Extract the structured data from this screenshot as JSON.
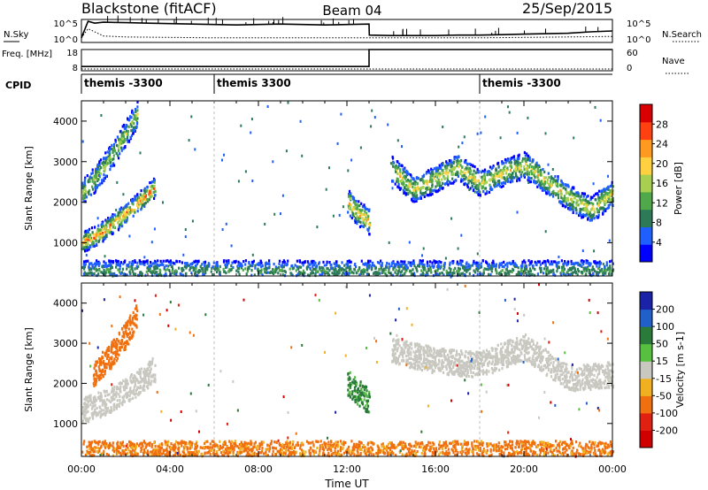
{
  "header": {
    "station": "Blackstone (fitACF)",
    "beam": "Beam 04",
    "date": "25/Sep/2015"
  },
  "chart_data": [
    {
      "type": "line",
      "panel": "noise",
      "left_label": "N.Sky",
      "right_label": "N.Search",
      "left_ticks": [
        "10^5",
        "10^0"
      ],
      "right_ticks": [
        "10^5",
        "10^0"
      ],
      "x_range": [
        0,
        24
      ],
      "series": [
        {
          "name": "N.Sky",
          "style": "solid",
          "x": [
            0,
            0.3,
            0.6,
            1,
            2,
            3,
            4,
            5,
            6,
            7,
            8,
            9,
            10,
            11,
            12,
            13,
            13.01,
            14,
            15,
            16,
            17,
            18,
            19,
            20,
            21,
            22,
            23,
            24
          ],
          "y": [
            1.0,
            4.6,
            4.2,
            4.4,
            4.3,
            4.2,
            4.1,
            4.0,
            3.9,
            3.8,
            3.9,
            4.0,
            3.9,
            3.8,
            3.9,
            4.0,
            1.6,
            1.5,
            1.5,
            1.5,
            1.6,
            1.6,
            1.7,
            1.8,
            1.9,
            2.0,
            2.3,
            2.5
          ]
        },
        {
          "name": "N.Search",
          "style": "dotted",
          "x": [
            0,
            0.3,
            1,
            2,
            4,
            6,
            8,
            10,
            12,
            14,
            16,
            18,
            20,
            22,
            24
          ],
          "y": [
            1.0,
            3.0,
            1.4,
            1.2,
            1.1,
            1.0,
            1.0,
            1.0,
            1.0,
            1.0,
            1.0,
            1.0,
            1.1,
            1.2,
            1.3
          ]
        }
      ]
    },
    {
      "type": "line",
      "panel": "frequency",
      "left_label": "Freq. [MHz]",
      "right_label": "Nave",
      "left_ticks": [
        "18",
        "8"
      ],
      "right_ticks": [
        "60",
        "0"
      ],
      "x_range": [
        0,
        24
      ],
      "series": [
        {
          "name": "Freq. [MHz]",
          "style": "solid",
          "x": [
            0,
            13,
            13,
            24
          ],
          "y": [
            10,
            10,
            18,
            18
          ]
        },
        {
          "name": "Nave",
          "style": "dotted",
          "x": [
            0,
            24
          ],
          "y": [
            5,
            5
          ]
        }
      ]
    },
    {
      "type": "table",
      "panel": "cpid",
      "label": "CPID",
      "segments": [
        {
          "start": 0,
          "end": 6,
          "text": "themis -3300"
        },
        {
          "start": 6,
          "end": 18,
          "text": "themis 3300"
        },
        {
          "start": 18,
          "end": 24,
          "text": "themis -3300"
        }
      ]
    },
    {
      "type": "heatmap",
      "panel": "power",
      "ylabel": "Slant Range [km]",
      "xlim": [
        0,
        24
      ],
      "ylim": [
        180,
        4500
      ],
      "yticks": [
        1000,
        2000,
        3000,
        4000
      ],
      "colorbar": {
        "label": "Power [dB]",
        "ticks": [
          4,
          8,
          12,
          16,
          20,
          24,
          28
        ],
        "range": [
          0,
          32
        ],
        "colors": [
          "#0000ff",
          "#1f5fff",
          "#2c7a58",
          "#4fa84a",
          "#a8d050",
          "#ffd040",
          "#ff9a20",
          "#ff4010",
          "#d80000"
        ]
      },
      "features": [
        {
          "name": "near-range scatter 1",
          "x": [
            0.0,
            0.8,
            1.5,
            2.3,
            3.0,
            3.3
          ],
          "y": [
            1000,
            1200,
            1500,
            1850,
            2200,
            2350
          ],
          "peak_power": 28
        },
        {
          "name": "far-range scatter 1",
          "x": [
            0.0,
            0.5,
            1.0,
            1.5,
            2.0,
            2.5
          ],
          "y": [
            2200,
            2500,
            2850,
            3250,
            3700,
            4150
          ],
          "peak_power": 18
        },
        {
          "name": "pre-13UT echo",
          "x": [
            12.0,
            12.5,
            13.0
          ],
          "y": [
            2000,
            1700,
            1500
          ],
          "peak_power": 24
        },
        {
          "name": "afternoon band",
          "x": [
            14.0,
            15.0,
            16.0,
            17.0,
            18.0,
            19.0,
            20.0,
            21.0,
            22.0,
            23.0,
            24.0
          ],
          "y": [
            2800,
            2300,
            2550,
            2850,
            2450,
            2700,
            2900,
            2500,
            2100,
            1800,
            2200
          ],
          "peak_power": 22
        },
        {
          "name": "ground scatter near range",
          "x": [
            0.0,
            4.0,
            8.0,
            12.0,
            16.0,
            20.0,
            24.0
          ],
          "y": [
            300,
            300,
            300,
            300,
            300,
            300,
            300
          ],
          "peak_power": 12
        }
      ]
    },
    {
      "type": "heatmap",
      "panel": "velocity",
      "ylabel": "Slant Range [km]",
      "xlabel": "Time UT",
      "xlim": [
        0,
        24
      ],
      "ylim": [
        180,
        4500
      ],
      "yticks": [
        1000,
        2000,
        3000,
        4000
      ],
      "xticks": [
        "00:00",
        "04:00",
        "08:00",
        "12:00",
        "16:00",
        "20:00",
        "00:00"
      ],
      "colorbar": {
        "label": "Velocity [m s-1]",
        "ticks": [
          200,
          100,
          50,
          15,
          -15,
          -50,
          -100,
          -200
        ],
        "colors": [
          "#1a22a8",
          "#2060c8",
          "#2a7a3a",
          "#58c040",
          "#c8c8c0",
          "#f0b020",
          "#f07010",
          "#e02010",
          "#d00000"
        ]
      },
      "features": [
        {
          "name": "ground scatter (grey)",
          "x": [
            0.0,
            1.0,
            2.0,
            3.0,
            3.3
          ],
          "y": [
            1300,
            1500,
            1800,
            2200,
            2350
          ],
          "velocity": 0
        },
        {
          "name": "ionospheric scatter (orange)",
          "x": [
            0.5,
            1.0,
            1.5,
            2.0,
            2.5
          ],
          "y": [
            2200,
            2500,
            2800,
            3200,
            3700
          ],
          "velocity": -60
        },
        {
          "name": "afternoon ground scatter",
          "x": [
            14.0,
            16.0,
            18.0,
            20.0,
            22.0,
            24.0
          ],
          "y": [
            2800,
            2550,
            2450,
            2900,
            2100,
            2200
          ],
          "velocity": 0
        },
        {
          "name": "pre-13UT echo",
          "x": [
            12.0,
            13.0
          ],
          "y": [
            2000,
            1500
          ],
          "velocity": 40
        },
        {
          "name": "near range scatter",
          "x": [
            0.0,
            24.0
          ],
          "y": [
            300,
            300
          ],
          "velocity": -40
        }
      ]
    }
  ]
}
